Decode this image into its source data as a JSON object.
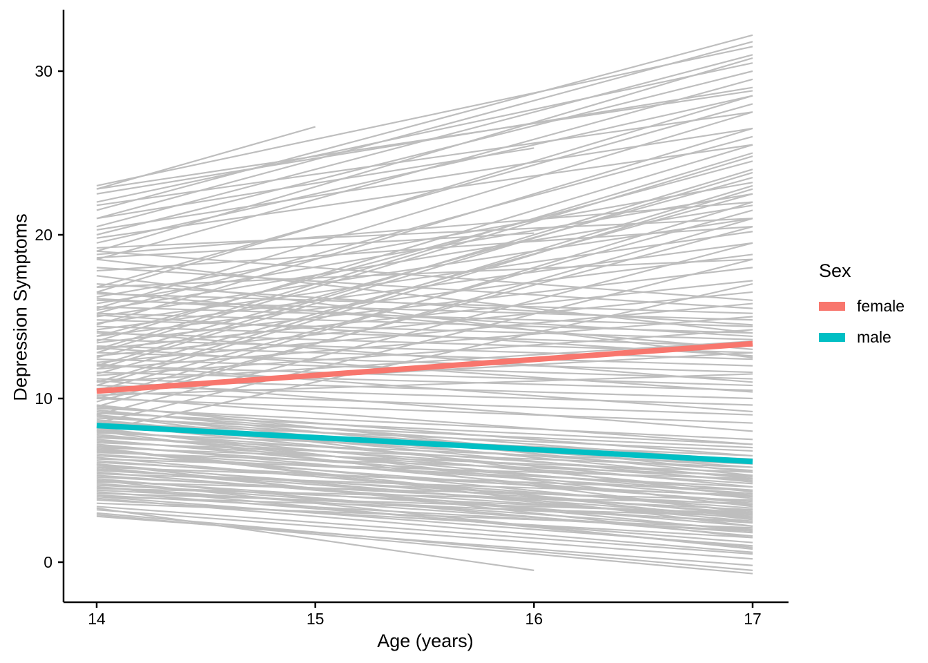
{
  "chart_data": {
    "type": "line",
    "title": "",
    "xlabel": "Age (years)",
    "ylabel": "Depression Symptoms",
    "x_ticks": [
      14,
      15,
      16,
      17
    ],
    "y_ticks": [
      0,
      10,
      20,
      30
    ],
    "xlim": [
      13.85,
      17.17
    ],
    "ylim": [
      -2.45,
      33.8
    ],
    "grid": "off",
    "axis_color": "#000000",
    "individual_line_color": "#BEBEBE",
    "individual_line_width": 2.2,
    "trend_line_width": 8,
    "legend": {
      "title": "Sex",
      "position": "right",
      "entries": [
        {
          "label": "female",
          "color": "#F8766D"
        },
        {
          "label": "male",
          "color": "#00BFC4"
        }
      ]
    },
    "trend_lines": [
      {
        "name": "female",
        "color": "#F8766D",
        "points": [
          [
            14,
            10.45
          ],
          [
            17,
            13.35
          ]
        ]
      },
      {
        "name": "male",
        "color": "#00BFC4",
        "points": [
          [
            14,
            8.35
          ],
          [
            17,
            6.15
          ]
        ]
      }
    ],
    "individual_lines": [
      [
        14,
        3.6,
        17,
        2.1
      ],
      [
        14,
        3.8,
        17,
        1.5
      ],
      [
        14,
        4.0,
        17,
        2.8
      ],
      [
        14,
        4.1,
        17,
        1.9
      ],
      [
        14,
        4.2,
        17,
        3.0
      ],
      [
        14,
        4.3,
        17,
        1.2
      ],
      [
        14,
        4.4,
        17,
        2.5
      ],
      [
        14,
        4.5,
        17,
        3.6
      ],
      [
        14,
        4.6,
        17,
        1.8
      ],
      [
        14,
        4.7,
        17,
        2.9
      ],
      [
        14,
        4.8,
        17,
        2.0
      ],
      [
        14,
        4.9,
        17,
        3.8
      ],
      [
        14,
        5.0,
        17,
        2.4
      ],
      [
        14,
        5.1,
        17,
        1.6
      ],
      [
        14,
        5.2,
        17,
        3.2
      ],
      [
        14,
        5.3,
        17,
        2.7
      ],
      [
        14,
        5.4,
        17,
        4.1
      ],
      [
        14,
        5.5,
        17,
        2.2
      ],
      [
        14,
        5.6,
        17,
        3.5
      ],
      [
        14,
        5.7,
        17,
        2.8
      ],
      [
        14,
        5.8,
        17,
        4.4
      ],
      [
        14,
        5.9,
        17,
        3.0
      ],
      [
        14,
        6.0,
        17,
        2.5
      ],
      [
        14,
        6.1,
        17,
        4.0
      ],
      [
        14,
        6.2,
        17,
        3.3
      ],
      [
        14,
        6.3,
        17,
        5.1
      ],
      [
        14,
        6.4,
        17,
        2.9
      ],
      [
        14,
        6.5,
        17,
        4.6
      ],
      [
        14,
        6.6,
        17,
        3.7
      ],
      [
        14,
        6.7,
        17,
        5.3
      ],
      [
        14,
        6.8,
        17,
        4.2
      ],
      [
        14,
        6.9,
        17,
        3.1
      ],
      [
        14,
        7.0,
        17,
        5.5
      ],
      [
        14,
        7.1,
        17,
        4.4
      ],
      [
        14,
        7.2,
        17,
        3.6
      ],
      [
        14,
        7.3,
        17,
        5.8
      ],
      [
        14,
        7.4,
        17,
        4.8
      ],
      [
        14,
        7.5,
        17,
        3.9
      ],
      [
        14,
        7.6,
        17,
        6.0
      ],
      [
        14,
        7.7,
        17,
        5.0
      ],
      [
        14,
        7.8,
        17,
        4.1
      ],
      [
        14,
        7.9,
        17,
        6.3
      ],
      [
        14,
        8.0,
        17,
        5.2
      ],
      [
        14,
        8.1,
        17,
        4.3
      ],
      [
        14,
        8.2,
        17,
        6.5
      ],
      [
        14,
        8.3,
        17,
        5.6
      ],
      [
        14,
        8.4,
        17,
        4.6
      ],
      [
        14,
        8.5,
        17,
        6.8
      ],
      [
        14,
        8.6,
        17,
        5.8
      ],
      [
        14,
        8.7,
        17,
        4.9
      ],
      [
        14,
        8.8,
        17,
        7.0
      ],
      [
        14,
        8.9,
        17,
        6.0
      ],
      [
        14,
        9.0,
        17,
        5.1
      ],
      [
        14,
        9.1,
        17,
        7.2
      ],
      [
        14,
        9.2,
        17,
        6.2
      ],
      [
        14,
        9.3,
        17,
        5.3
      ],
      [
        14,
        9.4,
        17,
        7.5
      ],
      [
        14,
        9.5,
        17,
        6.5
      ],
      [
        14,
        9.6,
        17,
        5.5
      ],
      [
        14,
        4.0,
        17,
        1.0
      ],
      [
        14,
        5.0,
        17,
        0.8
      ],
      [
        14,
        6.0,
        17,
        1.5
      ],
      [
        14,
        7.0,
        17,
        2.2
      ],
      [
        14,
        8.0,
        17,
        3.0
      ],
      [
        14,
        9.0,
        17,
        4.0
      ],
      [
        14,
        3.9,
        17,
        0.6
      ],
      [
        14,
        4.6,
        17,
        0.9
      ],
      [
        14,
        5.8,
        17,
        1.9
      ],
      [
        14,
        6.9,
        17,
        2.6
      ],
      [
        14,
        8.2,
        17,
        3.4
      ],
      [
        14,
        3.0,
        17,
        -0.5
      ],
      [
        14,
        2.9,
        17,
        -0.7
      ],
      [
        14,
        3.2,
        17,
        0.2
      ],
      [
        14,
        3.4,
        17,
        0.5
      ],
      [
        14,
        2.8,
        17,
        -0.2
      ],
      [
        14,
        10.0,
        17,
        8.5
      ],
      [
        14,
        10.2,
        17,
        11.5
      ],
      [
        14,
        10.4,
        17,
        9.0
      ],
      [
        14,
        10.6,
        17,
        12.8
      ],
      [
        14,
        10.8,
        17,
        9.6
      ],
      [
        14,
        11.0,
        17,
        13.5
      ],
      [
        14,
        11.2,
        17,
        10.0
      ],
      [
        14,
        11.4,
        17,
        14.2
      ],
      [
        14,
        11.6,
        17,
        10.5
      ],
      [
        14,
        11.8,
        17,
        15.0
      ],
      [
        14,
        12.0,
        17,
        10.8
      ],
      [
        14,
        12.2,
        17,
        15.8
      ],
      [
        14,
        12.4,
        17,
        11.2
      ],
      [
        14,
        12.6,
        17,
        16.5
      ],
      [
        14,
        12.8,
        17,
        11.6
      ],
      [
        14,
        13.0,
        17,
        17.2
      ],
      [
        14,
        13.2,
        17,
        12.0
      ],
      [
        14,
        13.4,
        17,
        18.0
      ],
      [
        14,
        13.6,
        17,
        12.4
      ],
      [
        14,
        13.8,
        17,
        18.8
      ],
      [
        14,
        14.0,
        17,
        12.8
      ],
      [
        14,
        14.2,
        17,
        19.5
      ],
      [
        14,
        14.4,
        17,
        13.2
      ],
      [
        14,
        14.6,
        17,
        20.2
      ],
      [
        14,
        14.8,
        17,
        13.6
      ],
      [
        14,
        15.0,
        17,
        21.0
      ],
      [
        14,
        15.2,
        17,
        14.0
      ],
      [
        14,
        15.4,
        17,
        21.8
      ],
      [
        14,
        15.6,
        17,
        14.4
      ],
      [
        14,
        15.8,
        17,
        22.5
      ],
      [
        14,
        16.0,
        17,
        14.8
      ],
      [
        14,
        16.2,
        17,
        23.2
      ],
      [
        14,
        16.4,
        17,
        15.2
      ],
      [
        14,
        10.1,
        17,
        7.2
      ],
      [
        14,
        11.1,
        17,
        8.0
      ],
      [
        14,
        12.1,
        17,
        9.2
      ],
      [
        14,
        13.1,
        17,
        10.4
      ],
      [
        14,
        14.1,
        17,
        11.0
      ],
      [
        14,
        15.1,
        17,
        12.6
      ],
      [
        14,
        16.1,
        17,
        13.8
      ],
      [
        14,
        16.5,
        17,
        13.0
      ],
      [
        14,
        17.0,
        17,
        14.5
      ],
      [
        14,
        17.5,
        17,
        12.5
      ],
      [
        14,
        18.0,
        17,
        15.5
      ],
      [
        14,
        18.5,
        17,
        14.0
      ],
      [
        14,
        19.0,
        17,
        16.0
      ],
      [
        14,
        16.8,
        17,
        18.5
      ],
      [
        14,
        17.8,
        17,
        20.5
      ],
      [
        14,
        18.8,
        17,
        22.0
      ],
      [
        14,
        19.2,
        17,
        21.0
      ],
      [
        14,
        8.5,
        17,
        18.5
      ],
      [
        14,
        9.0,
        17,
        19.5
      ],
      [
        14,
        9.5,
        17,
        21.0
      ],
      [
        14,
        10.0,
        17,
        22.0
      ],
      [
        14,
        10.5,
        17,
        21.5
      ],
      [
        14,
        11.0,
        17,
        23.0
      ],
      [
        14,
        11.5,
        17,
        22.5
      ],
      [
        14,
        12.0,
        17,
        24.0
      ],
      [
        14,
        12.5,
        17,
        23.5
      ],
      [
        14,
        13.0,
        17,
        25.0
      ],
      [
        14,
        8.0,
        17,
        17.0
      ],
      [
        14,
        9.8,
        17,
        20.5
      ],
      [
        14,
        10.8,
        17,
        22.8
      ],
      [
        14,
        11.8,
        17,
        23.8
      ],
      [
        14,
        12.8,
        17,
        24.8
      ],
      [
        14,
        13.5,
        17,
        25.5
      ],
      [
        14,
        14.5,
        17,
        26.5
      ],
      [
        14,
        15.5,
        17,
        27.5
      ],
      [
        14,
        16.5,
        17,
        28.5
      ],
      [
        14,
        13.8,
        17,
        24.5
      ],
      [
        14,
        15.2,
        17,
        26.0
      ],
      [
        14,
        16.8,
        17,
        28.0
      ],
      [
        14,
        19.5,
        17,
        28.5
      ],
      [
        14,
        20.0,
        17,
        30.0
      ],
      [
        14,
        20.5,
        17,
        31.0
      ],
      [
        14,
        21.0,
        17,
        31.8
      ],
      [
        14,
        21.5,
        17,
        32.2
      ],
      [
        14,
        22.0,
        17,
        30.5
      ],
      [
        14,
        22.5,
        17,
        29.0
      ],
      [
        14,
        23.0,
        17,
        31.5
      ],
      [
        14,
        19.8,
        17,
        25.5
      ],
      [
        14,
        20.3,
        17,
        26.5
      ],
      [
        14,
        21.8,
        17,
        27.5
      ],
      [
        14,
        22.8,
        17,
        28.8
      ],
      [
        14,
        18.5,
        17,
        29.5
      ],
      [
        14,
        19.0,
        17,
        30.8
      ],
      [
        14,
        22.8,
        15,
        26.6
      ],
      [
        14,
        21.0,
        16,
        25.3
      ],
      [
        14,
        18.6,
        16,
        20.1
      ],
      [
        14,
        3.3,
        16,
        -0.5
      ]
    ]
  }
}
